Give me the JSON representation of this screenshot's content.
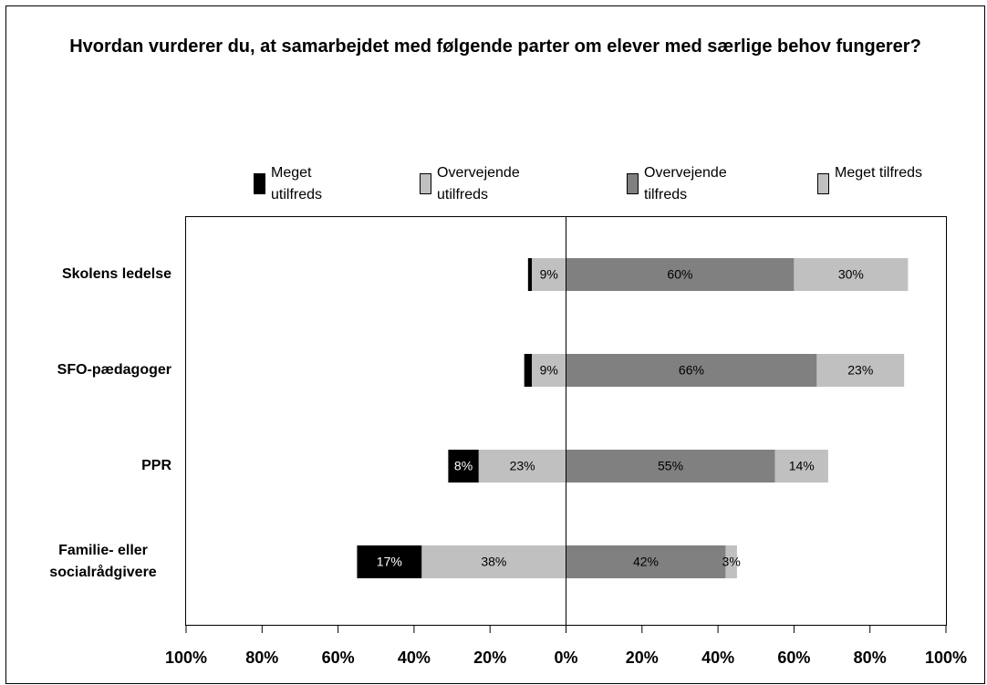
{
  "chart_data": {
    "type": "diverging_bar",
    "title": "Hvordan vurderer du, at samarbejdet med følgende parter om elever med særlige behov fungerer?",
    "categories": [
      "Skolens ledelse",
      "SFO-pædagoger",
      "PPR",
      "Familie- eller socialrådgivere"
    ],
    "series": [
      {
        "name": "Meget utilfreds",
        "color": "#000000",
        "values": [
          1,
          2,
          8,
          17
        ],
        "value_labels": [
          null,
          null,
          "8%",
          "17%"
        ]
      },
      {
        "name": "Overvejende utilfreds",
        "color": "#c0c0c0",
        "values": [
          9,
          9,
          23,
          38
        ],
        "value_labels": [
          "9%",
          "9%",
          "23%",
          "38%"
        ]
      },
      {
        "name": "Overvejende tilfreds",
        "color": "#808080",
        "values": [
          60,
          66,
          55,
          42
        ],
        "value_labels": [
          "60%",
          "66%",
          "55%",
          "42%"
        ]
      },
      {
        "name": "Meget tilfreds",
        "color": "#c0c0c0",
        "values": [
          30,
          23,
          14,
          3
        ],
        "value_labels": [
          "30%",
          "23%",
          "14%",
          "3%"
        ]
      }
    ],
    "xlim": [
      -100,
      100
    ],
    "xticks": [
      {
        "value": -100,
        "label": "100%"
      },
      {
        "value": -80,
        "label": "80%"
      },
      {
        "value": -60,
        "label": "60%"
      },
      {
        "value": -40,
        "label": "40%"
      },
      {
        "value": -20,
        "label": "20%"
      },
      {
        "value": 0,
        "label": "0%"
      },
      {
        "value": 20,
        "label": "20%"
      },
      {
        "value": 40,
        "label": "40%"
      },
      {
        "value": 60,
        "label": "60%"
      },
      {
        "value": 80,
        "label": "80%"
      },
      {
        "value": 100,
        "label": "100%"
      }
    ],
    "legend": "top"
  }
}
